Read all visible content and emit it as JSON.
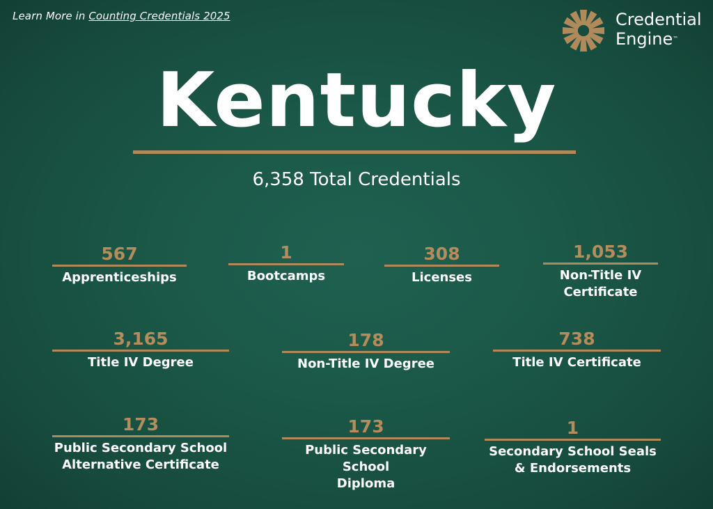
{
  "header": {
    "link_prefix": "Learn More in ",
    "link_text": "Counting Credentials 2025"
  },
  "logo": {
    "line1": "Credential",
    "line2": "Engine",
    "tm": "™",
    "colors": {
      "gold": "#b08a5a",
      "white": "#ffffff"
    }
  },
  "state": "Kentucky",
  "total_label": "6,358 Total Credentials",
  "items": [
    {
      "value": "567",
      "label_lines": [
        "Apprenticeships"
      ]
    },
    {
      "value": "1",
      "label_lines": [
        "Bootcamps"
      ]
    },
    {
      "value": "308",
      "label_lines": [
        "Licenses"
      ]
    },
    {
      "value": "1,053",
      "label_lines": [
        "Non-Title IV",
        "Certificate"
      ]
    },
    {
      "value": "3,165",
      "label_lines": [
        "Title IV Degree"
      ]
    },
    {
      "value": "178",
      "label_lines": [
        "Non-Title IV Degree"
      ]
    },
    {
      "value": "738",
      "label_lines": [
        "Title IV Certificate"
      ]
    },
    {
      "value": "173",
      "label_lines": [
        "Public Secondary School",
        "Alternative Certificate"
      ]
    },
    {
      "value": "173",
      "label_lines": [
        "Public Secondary School",
        "Diploma"
      ]
    },
    {
      "value": "1",
      "label_lines": [
        "Secondary School Seals",
        "& Endorsements"
      ]
    }
  ],
  "colors": {
    "background": "#1b5848",
    "accent": "#b08a5a",
    "number": "#b58c5b"
  }
}
